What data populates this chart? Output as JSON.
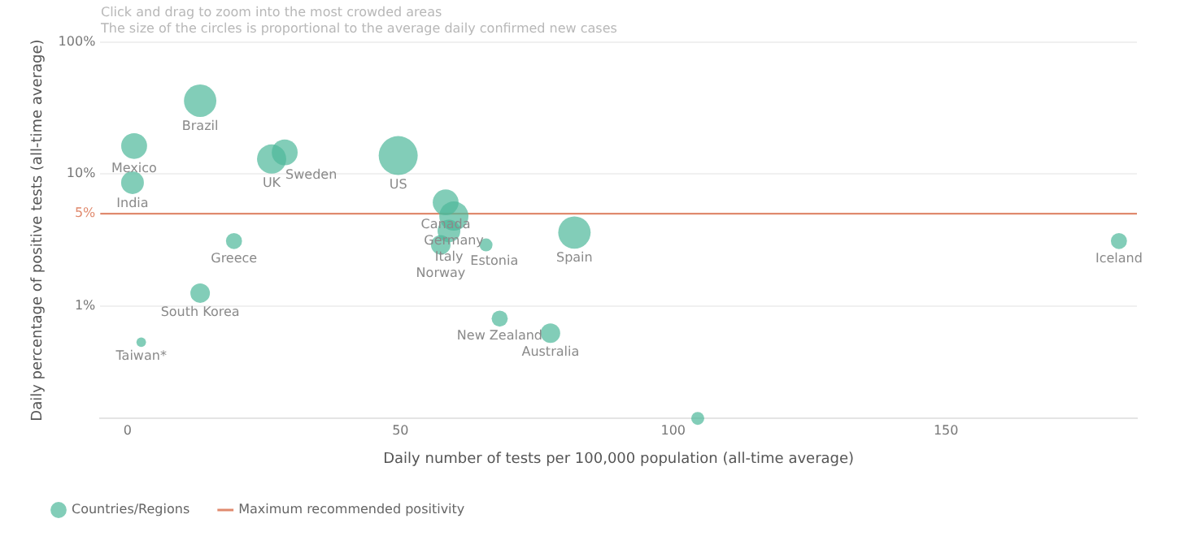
{
  "chart_data": {
    "type": "bubble",
    "xlabel": "Daily number of tests per 100,000 population (all-time average)",
    "ylabel": "Daily percentage of positive tests (all-time average)",
    "log": "y",
    "xlim": [
      -5,
      185
    ],
    "xticks": [
      0,
      50,
      100,
      150
    ],
    "ylim": [
      0.14,
      100
    ],
    "yticks": [
      {
        "value": 1,
        "label": "1%"
      },
      {
        "value": 5,
        "label": "5%"
      },
      {
        "value": 10,
        "label": "10%"
      },
      {
        "value": 100,
        "label": "100%"
      }
    ],
    "grid": "y",
    "legend": "bottom left",
    "marker": "circle",
    "series": [
      {
        "name": "Countries/Regions",
        "color": "#4db89a",
        "x": [
          13.3,
          1.2,
          0.9,
          26.4,
          28.8,
          49.6,
          58.3,
          59.8,
          58.9,
          57.4,
          65.7,
          81.9,
          19.5,
          181.7,
          13.3,
          2.5,
          68.2,
          77.5,
          104.5
        ],
        "values": [
          36,
          16.3,
          8.6,
          13,
          14.6,
          13.8,
          6.1,
          4.8,
          3.7,
          2.9,
          2.9,
          3.6,
          3.1,
          3.1,
          1.25,
          0.53,
          0.8,
          0.62,
          0.14
        ],
        "sizes": [
          0.69,
          0.44,
          0.34,
          0.56,
          0.44,
          1,
          0.44,
          0.56,
          0.34,
          0.25,
          0.11,
          0.69,
          0.17,
          0.17,
          0.25,
          0.06,
          0.17,
          0.25,
          0.11
        ]
      }
    ],
    "ref_lines": [
      {
        "axis": "y",
        "value": 5,
        "label": "Maximum recommended positivity",
        "color": "#e08a6e"
      }
    ],
    "annotations": [
      "Click and drag to zoom into the most crowded areas",
      "The size of the circles is proportional to the average daily confirmed new cases",
      {
        "text": "Brazil",
        "x": 13.3,
        "y": 36
      },
      {
        "text": "Mexico",
        "x": 1.2,
        "y": 16.3
      },
      {
        "text": "India",
        "x": 0.9,
        "y": 8.6
      },
      {
        "text": "UK",
        "x": 26.4,
        "y": 13
      },
      {
        "text": "Sweden",
        "x": 28.8,
        "y": 14.6
      },
      {
        "text": "US",
        "x": 49.6,
        "y": 13.8
      },
      {
        "text": "Canada",
        "x": 58.3,
        "y": 6.1
      },
      {
        "text": "Germany",
        "x": 59.8,
        "y": 4.8
      },
      {
        "text": "Italy",
        "x": 58.9,
        "y": 3.7
      },
      {
        "text": "Norway",
        "x": 57.4,
        "y": 2.9
      },
      {
        "text": "Estonia",
        "x": 65.7,
        "y": 2.9
      },
      {
        "text": "Spain",
        "x": 81.9,
        "y": 3.6
      },
      {
        "text": "Greece",
        "x": 19.5,
        "y": 3.1
      },
      {
        "text": "Iceland",
        "x": 181.7,
        "y": 3.1
      },
      {
        "text": "South Korea",
        "x": 13.3,
        "y": 1.25
      },
      {
        "text": "Taiwan*",
        "x": 2.5,
        "y": 0.53
      },
      {
        "text": "New Zealand",
        "x": 68.2,
        "y": 0.8
      },
      {
        "text": "Australia",
        "x": 77.5,
        "y": 0.62
      }
    ]
  }
}
